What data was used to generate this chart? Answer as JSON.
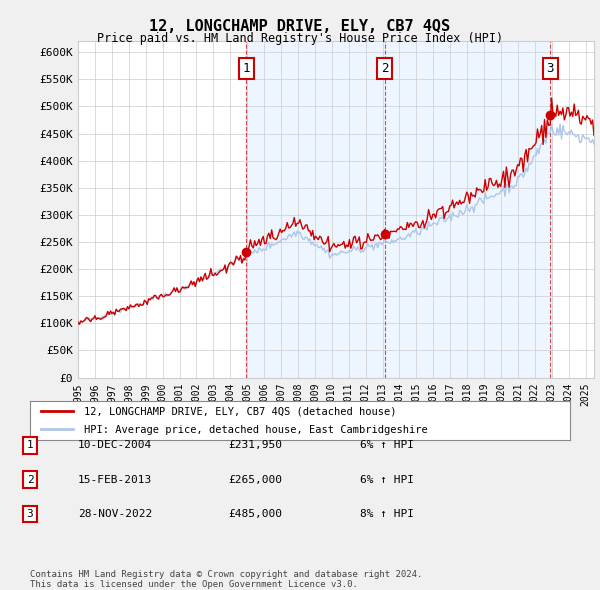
{
  "title": "12, LONGCHAMP DRIVE, ELY, CB7 4QS",
  "subtitle": "Price paid vs. HM Land Registry's House Price Index (HPI)",
  "ylabel": "",
  "xlabel": "",
  "ylim": [
    0,
    620000
  ],
  "yticks": [
    0,
    50000,
    100000,
    150000,
    200000,
    250000,
    300000,
    350000,
    400000,
    450000,
    500000,
    550000,
    600000
  ],
  "ytick_labels": [
    "£0",
    "£50K",
    "£100K",
    "£150K",
    "£200K",
    "£250K",
    "£300K",
    "£350K",
    "£400K",
    "£450K",
    "£500K",
    "£550K",
    "£600K"
  ],
  "start_year": 1995,
  "end_year": 2025,
  "sale_dates": [
    2004.94,
    2013.12,
    2022.91
  ],
  "sale_prices": [
    231950,
    265000,
    485000
  ],
  "sale_labels": [
    "1",
    "2",
    "3"
  ],
  "hpi_line_color": "#aec6e8",
  "price_line_color": "#cc0000",
  "sale_dot_color": "#cc0000",
  "vline_color": "#cc0000",
  "shade_color": "#ddeeff",
  "background_color": "#f5f5f5",
  "plot_bg_color": "#ffffff",
  "grid_color": "#cccccc",
  "legend_entry1": "12, LONGCHAMP DRIVE, ELY, CB7 4QS (detached house)",
  "legend_entry2": "HPI: Average price, detached house, East Cambridgeshire",
  "table_rows": [
    {
      "num": "1",
      "date": "10-DEC-2004",
      "price": "£231,950",
      "change": "6% ↑ HPI"
    },
    {
      "num": "2",
      "date": "15-FEB-2013",
      "price": "£265,000",
      "change": "6% ↑ HPI"
    },
    {
      "num": "3",
      "date": "28-NOV-2022",
      "price": "£485,000",
      "change": "8% ↑ HPI"
    }
  ],
  "footer": "Contains HM Land Registry data © Crown copyright and database right 2024.\nThis data is licensed under the Open Government Licence v3.0."
}
